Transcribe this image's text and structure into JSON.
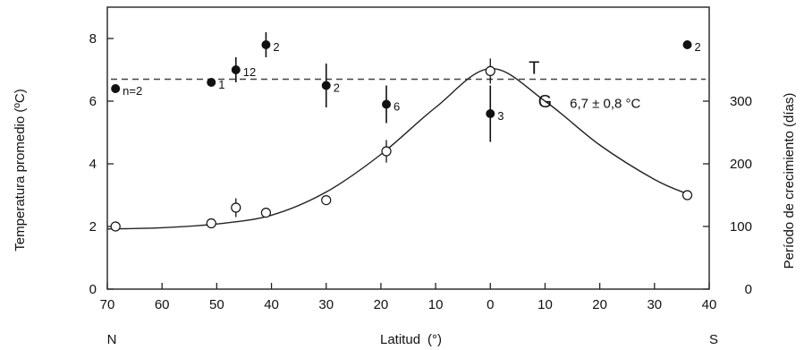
{
  "chart_data": {
    "type": "scatter",
    "xlabel": "Latitud",
    "xlabel_unit": "(°)",
    "xlabel_north": "N",
    "xlabel_south": "S",
    "ylabel_left": "Temperatura promedio (ºC)",
    "ylabel_right": "Período de crecimiento (días)",
    "x_tick_labels": [
      "70",
      "60",
      "50",
      "40",
      "30",
      "20",
      "10",
      "0",
      "10",
      "20",
      "30",
      "40"
    ],
    "x_tick_values": [
      70,
      60,
      50,
      40,
      30,
      20,
      10,
      0,
      -10,
      -20,
      -30,
      -40
    ],
    "x_axis_note": "axis runs from 70°N (left) through 0 to 40°S (right); southern latitudes stored as negative",
    "xlim": [
      70,
      -40
    ],
    "ylim_left": [
      0,
      9
    ],
    "y_left_ticks": [
      0,
      2,
      4,
      6,
      8
    ],
    "ylim_right": [
      0,
      450
    ],
    "y_right_ticks": [
      0,
      100,
      200,
      300
    ],
    "series_T": {
      "name": "T",
      "label": "T",
      "points": [
        {
          "x": 68.5,
          "y": 6.4,
          "err": 0.0,
          "n": "n=2"
        },
        {
          "x": 51,
          "y": 6.6,
          "err": 0.0,
          "n": "1"
        },
        {
          "x": 46.5,
          "y": 7.0,
          "err": 0.4,
          "n": "12"
        },
        {
          "x": 41,
          "y": 7.8,
          "err": 0.4,
          "n": "2"
        },
        {
          "x": 30,
          "y": 6.5,
          "err": 0.7,
          "n": "2"
        },
        {
          "x": 19,
          "y": 5.9,
          "err": 0.6,
          "n": "6"
        },
        {
          "x": 0,
          "y": 5.6,
          "err": 0.9,
          "n": "3"
        },
        {
          "x": -36,
          "y": 7.8,
          "err": 0.0,
          "n": "2"
        }
      ],
      "mean_line": 6.7,
      "mean_label": "6,7 ± 0,8 °C"
    },
    "series_G": {
      "name": "G",
      "label": "G",
      "points": [
        {
          "x": 68.5,
          "y": 100,
          "err": 0
        },
        {
          "x": 51,
          "y": 105,
          "err": 0
        },
        {
          "x": 46.5,
          "y": 130,
          "err": 15
        },
        {
          "x": 41,
          "y": 122,
          "err": 0
        },
        {
          "x": 30,
          "y": 142,
          "err": 0
        },
        {
          "x": 19,
          "y": 220,
          "err": 18
        },
        {
          "x": 0,
          "y": 348,
          "err": 20
        },
        {
          "x": -36,
          "y": 150,
          "err": 0
        }
      ],
      "curve": [
        {
          "x": 70,
          "y": 96
        },
        {
          "x": 60,
          "y": 98
        },
        {
          "x": 50,
          "y": 104
        },
        {
          "x": 40,
          "y": 118
        },
        {
          "x": 30,
          "y": 155
        },
        {
          "x": 20,
          "y": 215
        },
        {
          "x": 10,
          "y": 290
        },
        {
          "x": 0,
          "y": 352
        },
        {
          "x": -10,
          "y": 300
        },
        {
          "x": -20,
          "y": 230
        },
        {
          "x": -30,
          "y": 175
        },
        {
          "x": -36,
          "y": 152
        }
      ]
    },
    "grid": false
  }
}
